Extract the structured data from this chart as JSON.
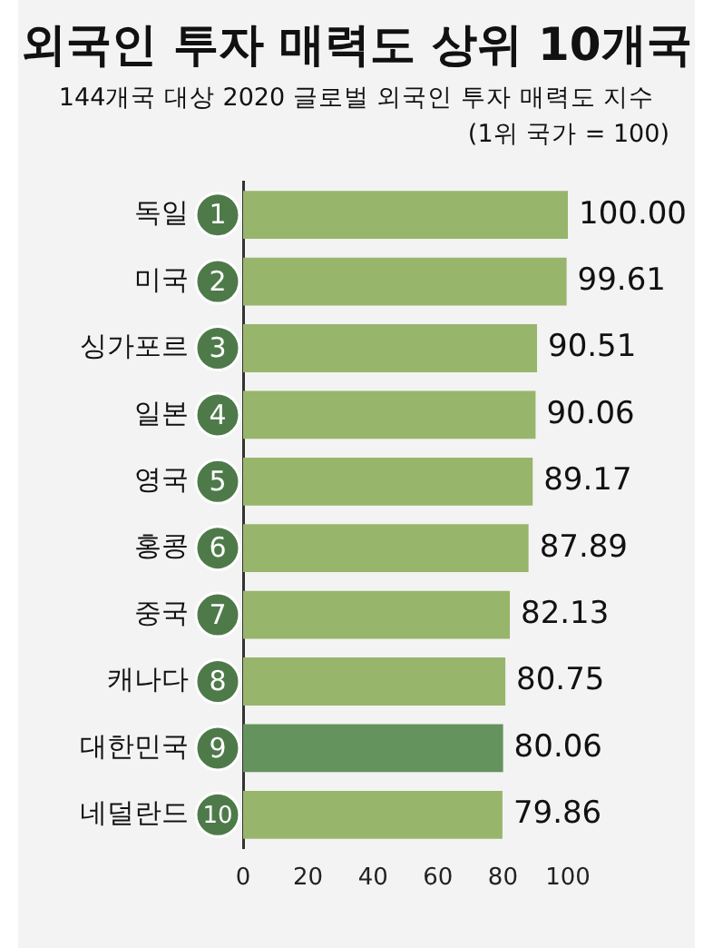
{
  "chart_data": {
    "type": "bar",
    "orientation": "horizontal",
    "title": "외국인 투자 매력도 상위 10개국",
    "subtitle": "144개국 대상 2020 글로벌 외국인 투자 매력도 지수",
    "categories": [
      "독일",
      "미국",
      "싱가포르",
      "일본",
      "영국",
      "홍콩",
      "중국",
      "캐나다",
      "대한민국",
      "네덜란드"
    ],
    "values": [
      100.0,
      99.61,
      90.51,
      90.06,
      89.17,
      87.89,
      82.13,
      80.75,
      80.06,
      79.86
    ],
    "colors": [
      "#98b56c",
      "#98b56c",
      "#98b56c",
      "#98b56c",
      "#98b56c",
      "#98b56c",
      "#98b56c",
      "#98b56c",
      "#65935e",
      "#98b56c"
    ],
    "value_labels": [
      "100.00",
      "99.61",
      "90.51",
      "90.06",
      "89.17",
      "87.89",
      "82.13",
      "80.75",
      "80.06",
      "79.86"
    ],
    "xlim": [
      0,
      100
    ],
    "xticks": [
      0,
      20,
      40,
      60,
      80,
      100
    ],
    "grid": false,
    "annotations": [
      "(1위 국가 = 100)",
      {
        "text": "1",
        "y": "독일"
      },
      {
        "text": "2",
        "y": "미국"
      },
      {
        "text": "3",
        "y": "싱가포르"
      },
      {
        "text": "4",
        "y": "일본"
      },
      {
        "text": "5",
        "y": "영국"
      },
      {
        "text": "6",
        "y": "홍콩"
      },
      {
        "text": "7",
        "y": "중국"
      },
      {
        "text": "8",
        "y": "캐나다"
      },
      {
        "text": "9",
        "y": "대한민국"
      },
      {
        "text": "10",
        "y": "네덜란드"
      }
    ]
  }
}
